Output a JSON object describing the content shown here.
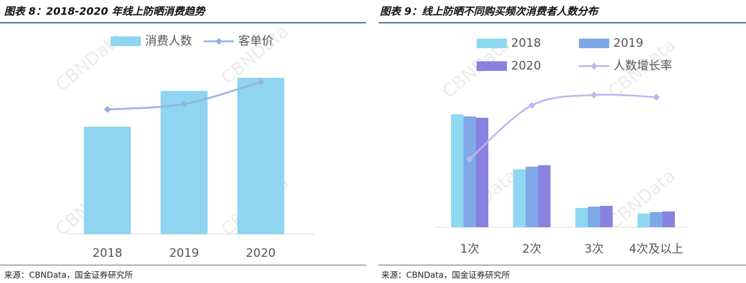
{
  "chart_data": [
    {
      "type": "bar",
      "title": "图表 8：2018-2020 年线上防晒消费趋势",
      "source": "来源：CBNData，国金证券研究所",
      "watermark": "CBNData",
      "categories": [
        "2018",
        "2019",
        "2020"
      ],
      "series": [
        {
          "name": "消费人数",
          "type": "bar",
          "color": "#8fd4f1",
          "values": [
            156,
            208,
            227
          ]
        },
        {
          "name": "客单价",
          "type": "line",
          "color": "#93b3e2",
          "values": [
            181,
            189,
            221
          ]
        }
      ]
    },
    {
      "type": "bar",
      "title": "图表 9：线上防晒不同购买频次消费者人数分布",
      "source": "来源：CBNData，国金证券研究所",
      "watermark": "CBNData",
      "categories": [
        "1次",
        "2次",
        "3次",
        "4次及以上"
      ],
      "series": [
        {
          "name": "2018",
          "type": "bar",
          "color": "#8fd8f2",
          "values": [
            164,
            84,
            28,
            20
          ]
        },
        {
          "name": "2019",
          "type": "bar",
          "color": "#7fa9e6",
          "values": [
            161,
            88,
            30,
            22
          ]
        },
        {
          "name": "2020",
          "type": "bar",
          "color": "#8a82e0",
          "values": [
            159,
            90,
            31,
            23
          ]
        },
        {
          "name": "人数增长率",
          "type": "line",
          "color": "#bdb5ef",
          "values": [
            99,
            177,
            192,
            189
          ]
        }
      ]
    }
  ]
}
